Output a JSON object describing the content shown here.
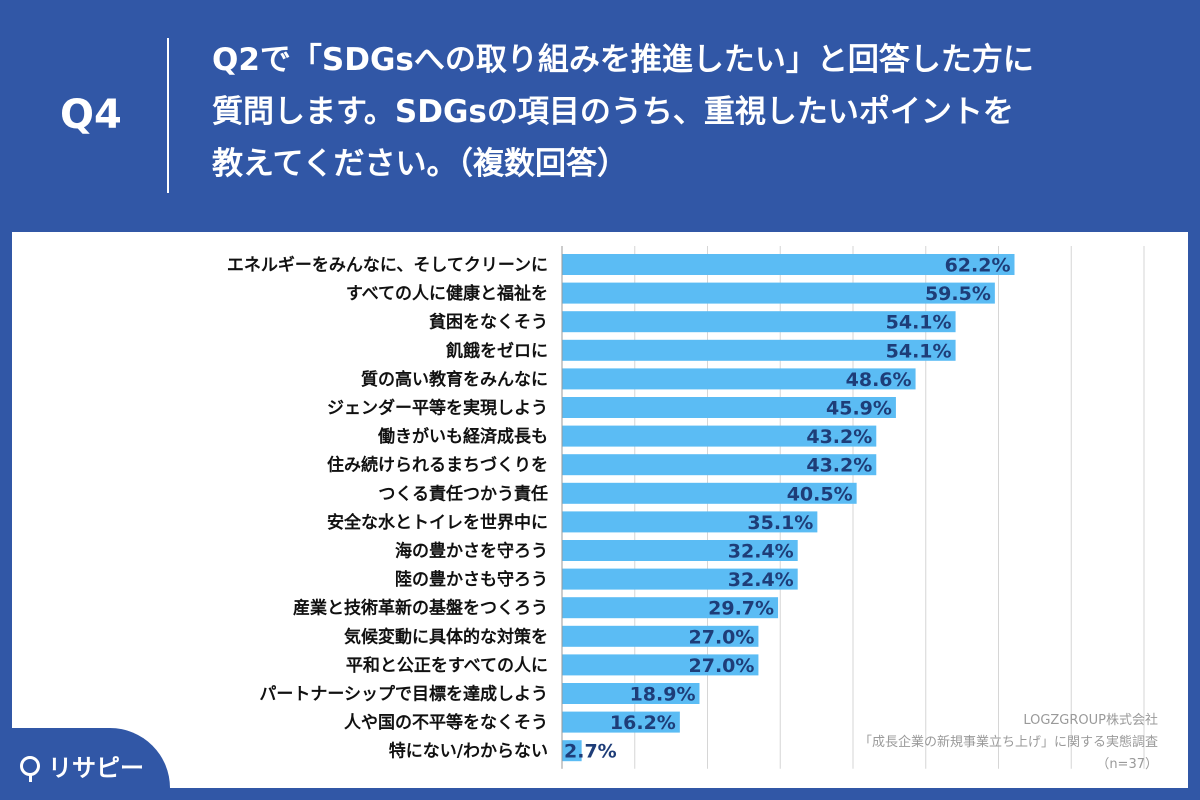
{
  "header": {
    "q_label": "Q4",
    "question_lines": [
      "Q2で「SDGsへの取り組みを推進したい」と回答した方に",
      "質問します。SDGsの項目のうち、重視したいポイントを",
      "教えてください。（複数回答）"
    ]
  },
  "source": {
    "company": "LOGZGROUP株式会社",
    "survey": "「成長企業の新規事業立ち上げ」に関する実態調査",
    "sample": "（n=37）"
  },
  "logo": {
    "text": "リサピー"
  },
  "colors": {
    "bar": "#5bbcf4",
    "label": "#1e3d78",
    "background": "#3157a6"
  },
  "chart_data": {
    "type": "bar",
    "orientation": "horizontal",
    "categories": [
      "エネルギーをみんなに、そしてクリーンに",
      "すべての人に健康と福祉を",
      "貧困をなくそう",
      "飢餓をゼロに",
      "質の高い教育をみんなに",
      "ジェンダー平等を実現しよう",
      "働きがいも経済成長も",
      "住み続けられるまちづくりを",
      "つくる責任つかう責任",
      "安全な水とトイレを世界中に",
      "海の豊かさを守ろう",
      "陸の豊かさも守ろう",
      "産業と技術革新の基盤をつくろう",
      "気候変動に具体的な対策を",
      "平和と公正をすべての人に",
      "パートナーシップで目標を達成しよう",
      "人や国の不平等をなくそう",
      "特にない/わからない"
    ],
    "values": [
      62.2,
      59.5,
      54.1,
      54.1,
      48.6,
      45.9,
      43.2,
      43.2,
      40.5,
      35.1,
      32.4,
      32.4,
      29.7,
      27.0,
      27.0,
      18.9,
      16.2,
      2.7
    ],
    "value_labels": [
      "62.2%",
      "59.5%",
      "54.1%",
      "54.1%",
      "48.6%",
      "45.9%",
      "43.2%",
      "43.2%",
      "40.5%",
      "35.1%",
      "32.4%",
      "32.4%",
      "29.7%",
      "27.0%",
      "27.0%",
      "18.9%",
      "16.2%",
      "2.7%"
    ],
    "xlim": [
      0,
      80
    ],
    "grid": true
  }
}
